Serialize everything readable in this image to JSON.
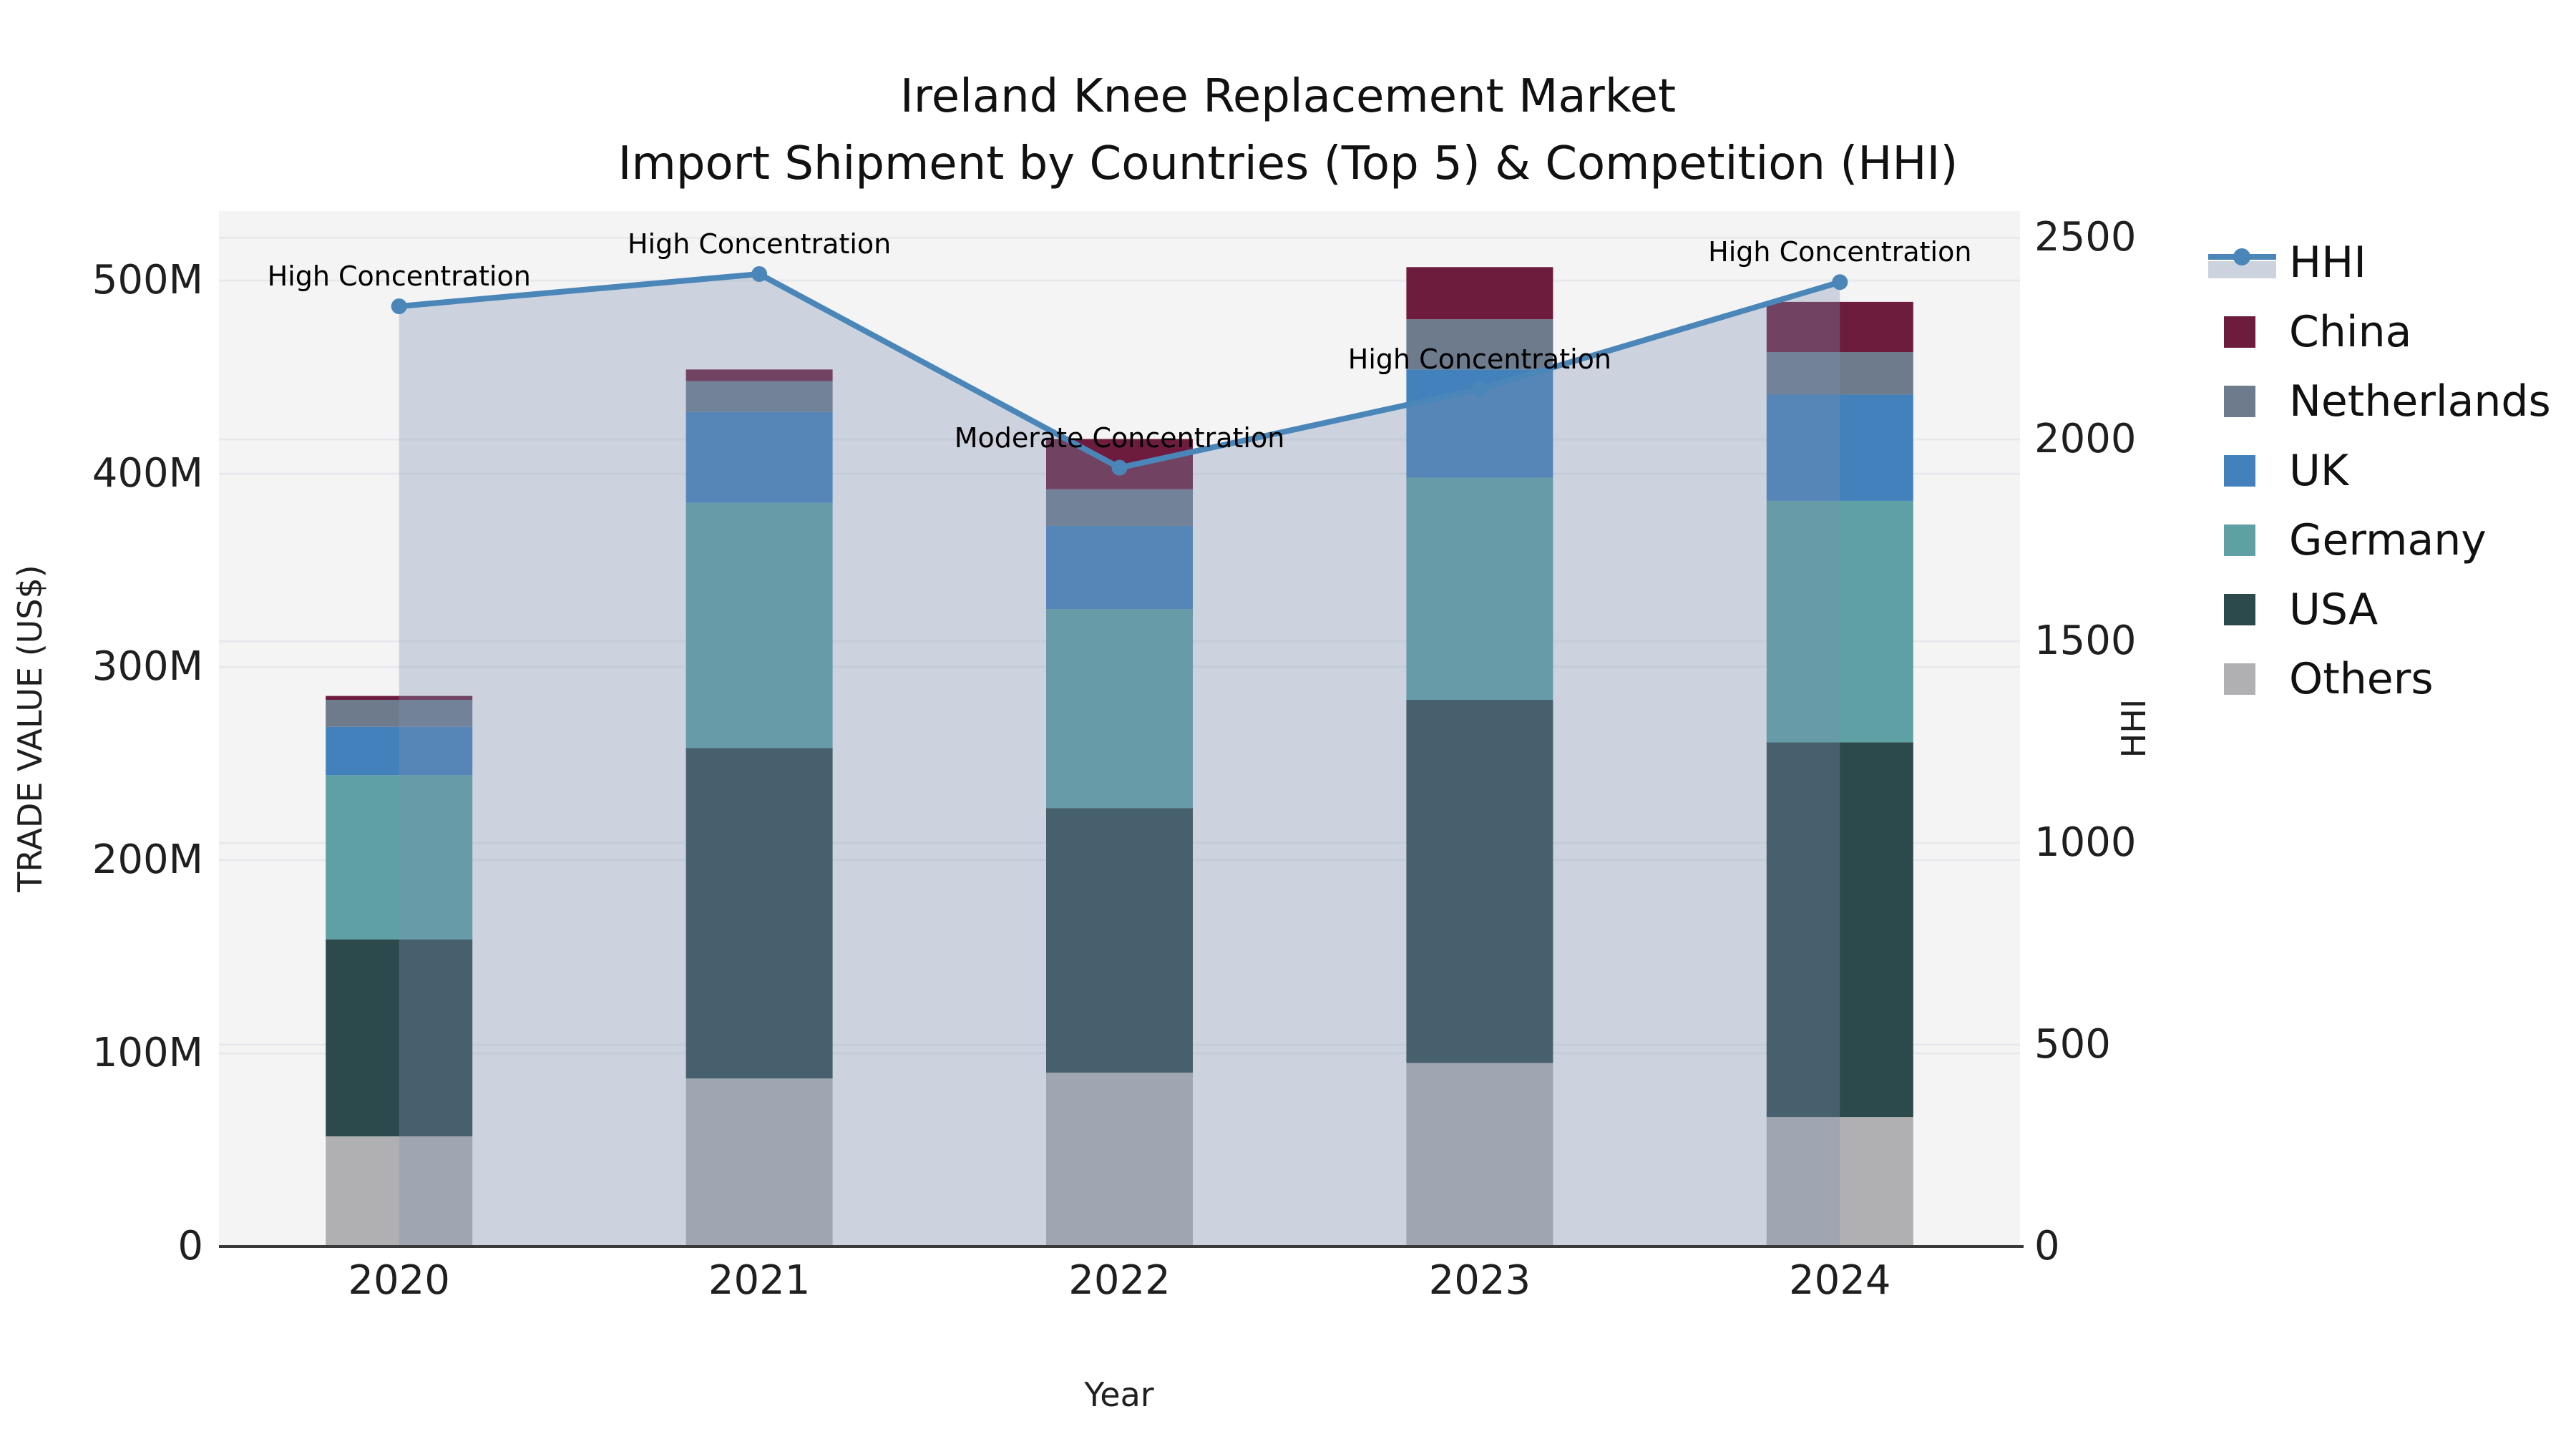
{
  "title": {
    "line1": "Ireland Knee Replacement Market",
    "line2": "Import Shipment by Countries (Top 5) & Competition (HHI)"
  },
  "axes": {
    "x": {
      "label": "Year",
      "categories": [
        "2020",
        "2021",
        "2022",
        "2023",
        "2024"
      ]
    },
    "y_left": {
      "label": "TRADE VALUE (US$)",
      "tick_labels": [
        "0",
        "100M",
        "200M",
        "300M",
        "400M",
        "500M"
      ],
      "tick_values": [
        0,
        100,
        200,
        300,
        400,
        500
      ],
      "range": [
        0,
        536
      ]
    },
    "y_right": {
      "label": "HHI",
      "tick_labels": [
        "0",
        "500",
        "1000",
        "1500",
        "2000",
        "2500"
      ],
      "tick_values": [
        0,
        500,
        1000,
        1500,
        2000,
        2500
      ],
      "range": [
        0,
        2566
      ]
    }
  },
  "chart_data": {
    "type": "bar",
    "subtype": "stacked-bars-with-line-overlay",
    "title": "Ireland Knee Replacement Market — Import Shipment by Countries (Top 5) & Competition (HHI)",
    "xlabel": "Year",
    "ylabel_left": "TRADE VALUE (US$)",
    "ylabel_right": "HHI",
    "categories": [
      "2020",
      "2021",
      "2022",
      "2023",
      "2024"
    ],
    "values_unit": "USD millions (M), read from left axis",
    "series": [
      {
        "name": "Others",
        "color": "#b0b0b3",
        "values": [
          57,
          87,
          90,
          95,
          67
        ]
      },
      {
        "name": "USA",
        "color": "#2c4a4c",
        "values": [
          102,
          171,
          137,
          188,
          194
        ]
      },
      {
        "name": "Germany",
        "color": "#5fa0a4",
        "values": [
          85,
          127,
          103,
          115,
          125
        ]
      },
      {
        "name": "UK",
        "color": "#4381bd",
        "values": [
          25,
          47,
          43,
          56,
          55
        ]
      },
      {
        "name": "Netherlands",
        "color": "#6d7b8c",
        "values": [
          14,
          16,
          19,
          26,
          22
        ]
      },
      {
        "name": "China",
        "color": "#6e1c3e",
        "values": [
          2,
          6,
          26,
          27,
          26
        ]
      }
    ],
    "line_series": {
      "name": "HHI",
      "axis": "right",
      "color": "#4a86b8",
      "area_fill": "rgba(125,145,177,0.33)",
      "values": [
        2330,
        2410,
        1930,
        2125,
        2390
      ]
    },
    "annotations": [
      {
        "category": "2020",
        "text": "High Concentration"
      },
      {
        "category": "2021",
        "text": "High Concentration"
      },
      {
        "category": "2022",
        "text": "Moderate Concentration"
      },
      {
        "category": "2023",
        "text": "High Concentration"
      },
      {
        "category": "2024",
        "text": "High Concentration"
      }
    ],
    "legend_position": "right-top-outside",
    "grid": "horizontal, both axes tick sets, light gray on light plot background",
    "plot_background": "#f4f4f5",
    "gridline_color": "#e7e9ec",
    "spine_color": "#3a3a3a"
  },
  "legend": {
    "items": [
      {
        "label": "HHI",
        "type": "line",
        "color": "#4a86b8",
        "band": "#ccd3de"
      },
      {
        "label": "China",
        "type": "square",
        "color": "#6e1c3e"
      },
      {
        "label": "Netherlands",
        "type": "square",
        "color": "#6d7b8c"
      },
      {
        "label": "UK",
        "type": "square",
        "color": "#4381bd"
      },
      {
        "label": "Germany",
        "type": "square",
        "color": "#5fa0a4"
      },
      {
        "label": "USA",
        "type": "square",
        "color": "#2c4a4c"
      },
      {
        "label": "Others",
        "type": "square",
        "color": "#b0b0b3"
      }
    ]
  }
}
